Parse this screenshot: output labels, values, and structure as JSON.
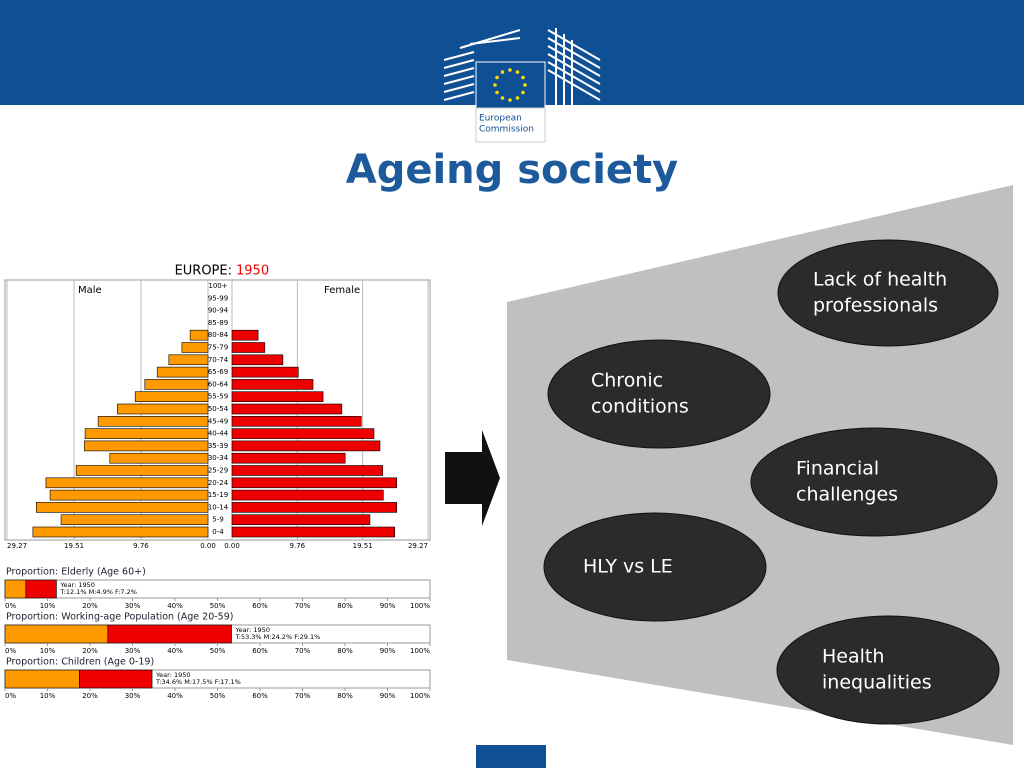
{
  "slide": {
    "logo_text": [
      "European",
      "Commission"
    ],
    "title": "Ageing society",
    "bubbles": [
      [
        "Lack of health",
        "professionals"
      ],
      [
        "Chronic",
        "conditions"
      ],
      [
        "Financial",
        "challenges"
      ],
      [
        "HLY vs LE"
      ],
      [
        "Health",
        "inequalities"
      ]
    ]
  },
  "chart_data": [
    {
      "type": "pyramid",
      "title": "EUROPE:",
      "year": "1950",
      "categories": [
        "0-4",
        "5-9",
        "10-14",
        "15-19",
        "20-24",
        "25-29",
        "30-34",
        "35-39",
        "40-44",
        "45-49",
        "50-54",
        "55-59",
        "60-64",
        "65-69",
        "70-74",
        "75-79",
        "80-84",
        "85-89",
        "90-94",
        "95-99",
        "100+"
      ],
      "series": [
        {
          "name": "Male",
          "color": "#ff9900",
          "values": [
            25.5,
            21.4,
            25.0,
            23.0,
            23.6,
            19.2,
            14.3,
            18.0,
            17.9,
            16.0,
            13.2,
            10.6,
            9.2,
            7.4,
            5.7,
            3.8,
            2.6,
            0,
            0,
            0,
            0
          ]
        },
        {
          "name": "Female",
          "color": "#ee0000",
          "values": [
            24.3,
            20.6,
            24.6,
            22.6,
            24.6,
            22.5,
            16.9,
            22.1,
            21.2,
            19.3,
            16.4,
            13.6,
            12.1,
            9.9,
            7.6,
            4.9,
            3.9,
            0,
            0,
            0,
            0
          ]
        }
      ],
      "xlim": [
        0,
        29.27
      ],
      "xticks": [
        29.27,
        19.51,
        9.76,
        {
          "value": 0,
          "label": "0.00"
        }
      ],
      "grid": true
    },
    {
      "type": "proportion",
      "title": "Proportion: Elderly (Age 60+)",
      "values": [
        4.9,
        7.2
      ],
      "colors": [
        "#ff9900",
        "#ee0000"
      ],
      "annotation": [
        "Year: 1950",
        "T:12.1%  M:4.9%  F:7.2%"
      ],
      "xlim": [
        0,
        100
      ],
      "xticks": [
        {
          "value": 0,
          "label": "0%"
        },
        {
          "value": 10,
          "label": "10%"
        },
        {
          "value": 20,
          "label": "20%"
        },
        {
          "value": 30,
          "label": "30%"
        },
        {
          "value": 40,
          "label": "40%"
        },
        {
          "value": 50,
          "label": "50%"
        },
        {
          "value": 60,
          "label": "60%"
        },
        {
          "value": 70,
          "label": "70%"
        },
        {
          "value": 80,
          "label": "80%"
        },
        {
          "value": 90,
          "label": "90%"
        },
        {
          "value": 100,
          "label": "100%"
        }
      ]
    },
    {
      "type": "proportion",
      "title": "Proportion: Working-age Population (Age 20-59)",
      "values": [
        24.2,
        29.1
      ],
      "colors": [
        "#ff9900",
        "#ee0000"
      ],
      "annotation": [
        "Year: 1950",
        "T:53.3%  M:24.2%  F:29.1%"
      ],
      "xlim": [
        0,
        100
      ],
      "xticks": [
        {
          "value": 0,
          "label": "0%"
        },
        {
          "value": 10,
          "label": "10%"
        },
        {
          "value": 20,
          "label": "20%"
        },
        {
          "value": 30,
          "label": "30%"
        },
        {
          "value": 40,
          "label": "40%"
        },
        {
          "value": 50,
          "label": "50%"
        },
        {
          "value": 60,
          "label": "60%"
        },
        {
          "value": 70,
          "label": "70%"
        },
        {
          "value": 80,
          "label": "80%"
        },
        {
          "value": 90,
          "label": "90%"
        },
        {
          "value": 100,
          "label": "100%"
        }
      ]
    },
    {
      "type": "proportion",
      "title": "Proportion: Children (Age 0-19)",
      "values": [
        17.5,
        17.1
      ],
      "colors": [
        "#ff9900",
        "#ee0000"
      ],
      "annotation": [
        "Year: 1950",
        "T:34.6%  M:17.5%  F:17.1%"
      ],
      "xlim": [
        0,
        100
      ],
      "xticks": [
        {
          "value": 0,
          "label": "0%"
        },
        {
          "value": 10,
          "label": "10%"
        },
        {
          "value": 20,
          "label": "20%"
        },
        {
          "value": 30,
          "label": "30%"
        },
        {
          "value": 40,
          "label": "40%"
        },
        {
          "value": 50,
          "label": "50%"
        },
        {
          "value": 60,
          "label": "60%"
        },
        {
          "value": 70,
          "label": "70%"
        },
        {
          "value": 80,
          "label": "80%"
        },
        {
          "value": 90,
          "label": "90%"
        },
        {
          "value": 100,
          "label": "100%"
        }
      ]
    }
  ]
}
